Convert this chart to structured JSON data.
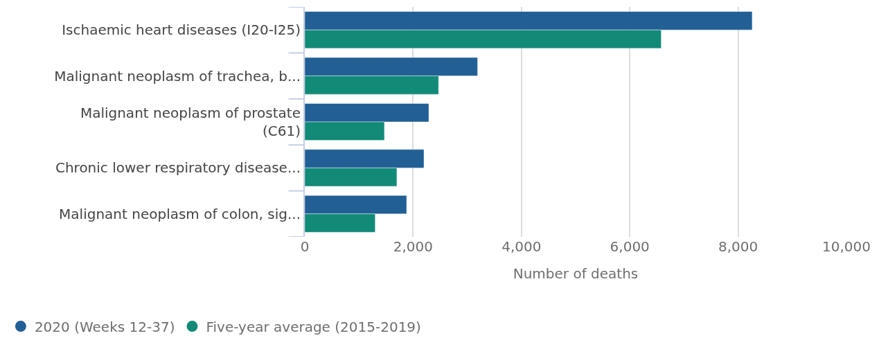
{
  "chart_data": {
    "type": "bar",
    "orientation": "horizontal",
    "categories": [
      "Ischaemic heart diseases (I20-I25)",
      "Malignant neoplasm of trachea, b...",
      "Malignant neoplasm of prostate\n(C61)",
      "Chronic lower respiratory disease...",
      "Malignant neoplasm of colon, sig..."
    ],
    "series": [
      {
        "name": "2020 (Weeks 12-37)",
        "color": "#215f95",
        "values": [
          8260,
          3190,
          2290,
          2200,
          1880
        ]
      },
      {
        "name": "Five-year average (2015-2019)",
        "color": "#128a78",
        "values": [
          6580,
          2470,
          1470,
          1700,
          1300
        ]
      }
    ],
    "xlabel": "Number of deaths",
    "xlim": [
      0,
      10000
    ],
    "xticks": [
      {
        "value": 0,
        "label": "0"
      },
      {
        "value": 2000,
        "label": "2,000"
      },
      {
        "value": 4000,
        "label": "4,000"
      },
      {
        "value": 6000,
        "label": "6,000"
      },
      {
        "value": 8000,
        "label": "8,000"
      },
      {
        "value": 10000,
        "label": "10,000"
      }
    ],
    "grid": "x",
    "legend": "bottom left",
    "marker": "circle"
  }
}
